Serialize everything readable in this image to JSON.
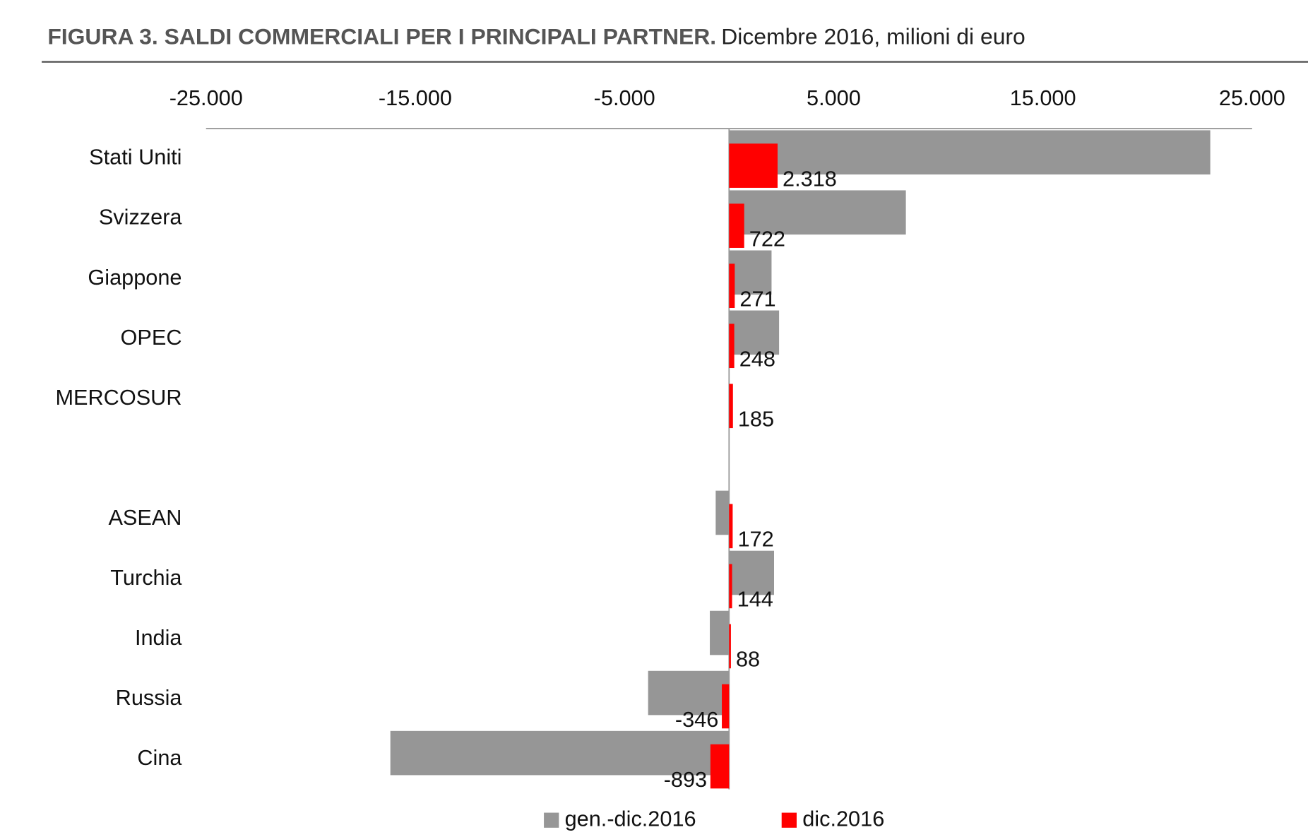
{
  "chart_data": {
    "type": "hbar",
    "title": "FIGURA 3. SALDI COMMERCIALI PER I PRINCIPALI PARTNER.",
    "subtitle": "Dicembre 2016, milioni di euro",
    "categories": [
      "Stati Uniti",
      "Svizzera",
      "Giappone",
      "OPEC",
      "MERCOSUR",
      null,
      "ASEAN",
      "Turchia",
      "India",
      "Russia",
      "Cina"
    ],
    "series": [
      {
        "name": "gen.-dic.2016",
        "color": "#969696",
        "values": [
          23000,
          8450,
          2030,
          2390,
          0,
          null,
          -640,
          2150,
          -920,
          -3870,
          -16190
        ]
      },
      {
        "name": "dic.2016",
        "color": "#ff0000",
        "values": [
          2318,
          722,
          271,
          248,
          185,
          null,
          172,
          144,
          88,
          -346,
          -893
        ],
        "value_labels": [
          "2.318",
          "722",
          "271",
          "248",
          "185",
          null,
          "172",
          "144",
          "88",
          "-346",
          "-893"
        ]
      }
    ],
    "xlim": [
      -25000,
      25000
    ],
    "xticks": [
      {
        "value": -25000,
        "label": "-25.000"
      },
      {
        "value": -15000,
        "label": "-15.000"
      },
      {
        "value": -5000,
        "label": "-5.000"
      },
      {
        "value": 5000,
        "label": "5.000"
      },
      {
        "value": 15000,
        "label": "15.000"
      },
      {
        "value": 25000,
        "label": "25.000"
      }
    ],
    "legend": "bottom"
  }
}
